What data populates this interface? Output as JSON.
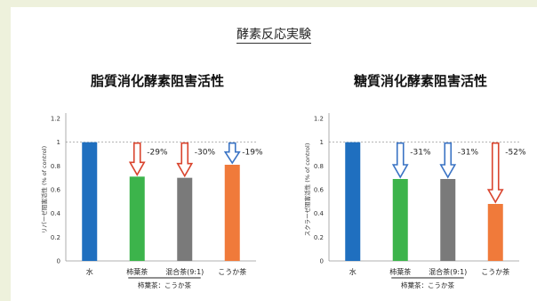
{
  "page_title": "酵素反応実験",
  "colors": {
    "water": "#1f6fbf",
    "kaki": "#3cb44b",
    "mixed": "#7a7a7a",
    "kouka": "#f07a3a",
    "arrow_blue": "#3a73c4",
    "arrow_red": "#d9442e"
  },
  "chart_data": [
    {
      "type": "bar",
      "title": "脂質消化酵素阻害活性",
      "ylabel": "リパーゼ阻害活性 (% of control)",
      "ylim": [
        0,
        1.2
      ],
      "yticks": [
        "0",
        "0.2",
        "0.4",
        "0.6",
        "0.8",
        "1",
        "1.2"
      ],
      "categories": [
        "水",
        "柿葉茶",
        "混合茶(9:1)",
        "こうか茶"
      ],
      "values": [
        1.0,
        0.71,
        0.7,
        0.81
      ],
      "reference_line": 1,
      "annotations": [
        {
          "index": 1,
          "label": "-29%",
          "color": "red"
        },
        {
          "index": 2,
          "label": "-30%",
          "color": "red"
        },
        {
          "index": 3,
          "label": "-19%",
          "color": "blue"
        }
      ],
      "group_label": "柿葉茶：こうか茶"
    },
    {
      "type": "bar",
      "title": "糖質消化酵素阻害活性",
      "ylabel": "スクラーゼ阻害活性 (% of control)",
      "ylim": [
        0,
        1.2
      ],
      "yticks": [
        "0",
        "0.2",
        "0.4",
        "0.6",
        "0.8",
        "1",
        "1.2"
      ],
      "categories": [
        "水",
        "柿葉茶",
        "混合茶(9:1)",
        "こうか茶"
      ],
      "values": [
        1.0,
        0.69,
        0.69,
        0.48
      ],
      "reference_line": 1,
      "annotations": [
        {
          "index": 1,
          "label": "-31%",
          "color": "blue"
        },
        {
          "index": 2,
          "label": "-31%",
          "color": "blue"
        },
        {
          "index": 3,
          "label": "-52%",
          "color": "red"
        }
      ],
      "group_label": "柿葉茶：こうか茶"
    }
  ]
}
